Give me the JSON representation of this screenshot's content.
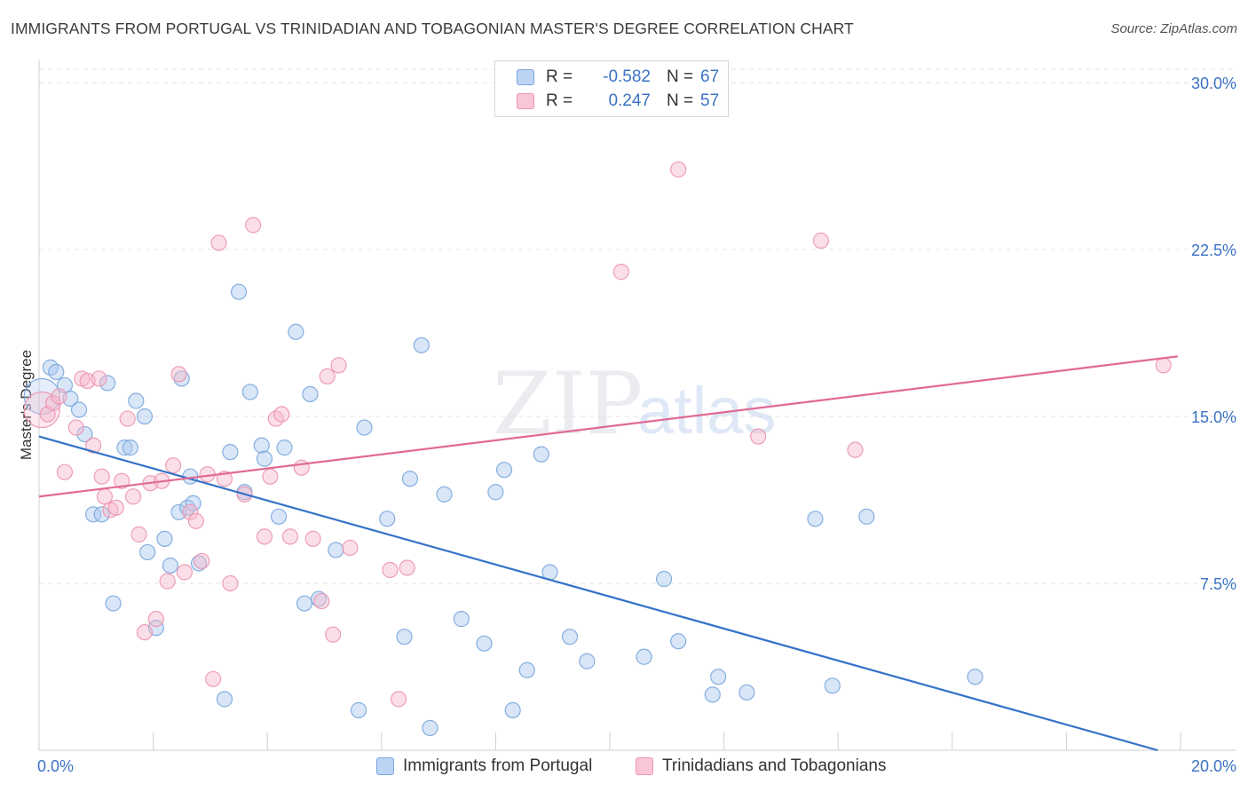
{
  "title": "IMMIGRANTS FROM PORTUGAL VS TRINIDADIAN AND TOBAGONIAN MASTER'S DEGREE CORRELATION CHART",
  "source": "Source: ZipAtlas.com",
  "watermark": {
    "zip": "ZIP",
    "atlas": "atlas"
  },
  "colors": {
    "blue_fill": "#a9c8f0",
    "blue_stroke": "#7aa6dc",
    "blue_line": "#3472c8",
    "pink_fill": "#f7b8cc",
    "pink_stroke": "#ec93b0",
    "pink_line": "#e06a94",
    "tick_label": "#3b72c4",
    "grid": "#e3e3e3"
  },
  "legend": {
    "rows": [
      {
        "series": "blue",
        "r_label": "R =",
        "r_value": "-0.582",
        "n_label": "N =",
        "n_value": "67"
      },
      {
        "series": "pink",
        "r_label": "R =",
        "r_value": "0.247",
        "n_label": "N =",
        "n_value": "57"
      }
    ]
  },
  "chart_data": {
    "type": "scatter",
    "title": "IMMIGRANTS FROM PORTUGAL VS TRINIDADIAN AND TOBAGONIAN MASTER'S DEGREE CORRELATION CHART",
    "xlabel": "",
    "ylabel": "Master's Degree",
    "xlim": [
      0,
      20
    ],
    "ylim": [
      0,
      31
    ],
    "x_ticks": [
      "0.0%",
      "20.0%"
    ],
    "y_ticks": [
      {
        "value": 7.5,
        "label": "7.5%"
      },
      {
        "value": 15.0,
        "label": "15.0%"
      },
      {
        "value": 22.5,
        "label": "22.5%"
      },
      {
        "value": 30.0,
        "label": "30.0%"
      }
    ],
    "grid": "horizontal dashed",
    "legend_position": "top-center and bottom",
    "series": [
      {
        "name": "Immigrants from Portugal",
        "color": "blue",
        "trend": {
          "x": [
            0,
            19.6
          ],
          "y": [
            14.1,
            0.0
          ]
        },
        "points": [
          {
            "x": 0.05,
            "y": 15.9,
            "big": true
          },
          {
            "x": 0.2,
            "y": 17.2
          },
          {
            "x": 0.3,
            "y": 17.0
          },
          {
            "x": 0.45,
            "y": 16.4
          },
          {
            "x": 0.55,
            "y": 15.8
          },
          {
            "x": 0.7,
            "y": 15.3
          },
          {
            "x": 0.8,
            "y": 14.2
          },
          {
            "x": 1.2,
            "y": 16.5
          },
          {
            "x": 1.5,
            "y": 13.6
          },
          {
            "x": 1.6,
            "y": 13.6
          },
          {
            "x": 1.7,
            "y": 15.7
          },
          {
            "x": 1.85,
            "y": 15.0
          },
          {
            "x": 0.95,
            "y": 10.6
          },
          {
            "x": 1.1,
            "y": 10.6
          },
          {
            "x": 1.3,
            "y": 6.6
          },
          {
            "x": 1.9,
            "y": 8.9
          },
          {
            "x": 2.2,
            "y": 9.5
          },
          {
            "x": 2.3,
            "y": 8.3
          },
          {
            "x": 2.45,
            "y": 10.7
          },
          {
            "x": 2.6,
            "y": 10.9
          },
          {
            "x": 2.7,
            "y": 11.1
          },
          {
            "x": 2.8,
            "y": 8.4
          },
          {
            "x": 2.65,
            "y": 12.3
          },
          {
            "x": 2.5,
            "y": 16.7
          },
          {
            "x": 3.35,
            "y": 13.4
          },
          {
            "x": 3.5,
            "y": 20.6
          },
          {
            "x": 3.6,
            "y": 11.6
          },
          {
            "x": 3.7,
            "y": 16.1
          },
          {
            "x": 3.9,
            "y": 13.7
          },
          {
            "x": 3.95,
            "y": 13.1
          },
          {
            "x": 4.2,
            "y": 10.5
          },
          {
            "x": 4.3,
            "y": 13.6
          },
          {
            "x": 4.5,
            "y": 18.8
          },
          {
            "x": 4.65,
            "y": 6.6
          },
          {
            "x": 4.75,
            "y": 16.0
          },
          {
            "x": 4.9,
            "y": 6.8
          },
          {
            "x": 2.05,
            "y": 5.5
          },
          {
            "x": 3.25,
            "y": 2.3
          },
          {
            "x": 5.2,
            "y": 9.0
          },
          {
            "x": 5.6,
            "y": 1.8
          },
          {
            "x": 5.7,
            "y": 14.5
          },
          {
            "x": 6.1,
            "y": 10.4
          },
          {
            "x": 6.4,
            "y": 5.1
          },
          {
            "x": 6.5,
            "y": 12.2
          },
          {
            "x": 6.7,
            "y": 18.2
          },
          {
            "x": 6.85,
            "y": 1.0
          },
          {
            "x": 7.1,
            "y": 11.5
          },
          {
            "x": 7.4,
            "y": 5.9
          },
          {
            "x": 7.8,
            "y": 4.8
          },
          {
            "x": 8.0,
            "y": 11.6
          },
          {
            "x": 8.15,
            "y": 12.6
          },
          {
            "x": 8.3,
            "y": 1.8
          },
          {
            "x": 8.55,
            "y": 3.6
          },
          {
            "x": 8.8,
            "y": 13.3
          },
          {
            "x": 8.95,
            "y": 8.0
          },
          {
            "x": 9.3,
            "y": 5.1
          },
          {
            "x": 9.6,
            "y": 4.0
          },
          {
            "x": 10.6,
            "y": 4.2
          },
          {
            "x": 10.95,
            "y": 7.7
          },
          {
            "x": 11.2,
            "y": 4.9
          },
          {
            "x": 11.8,
            "y": 2.5
          },
          {
            "x": 11.9,
            "y": 3.3
          },
          {
            "x": 12.4,
            "y": 2.6
          },
          {
            "x": 13.6,
            "y": 10.4
          },
          {
            "x": 13.9,
            "y": 2.9
          },
          {
            "x": 14.5,
            "y": 10.5
          },
          {
            "x": 16.4,
            "y": 3.3
          }
        ]
      },
      {
        "name": "Trinidadians and Tobagonians",
        "color": "pink",
        "trend": {
          "x": [
            0,
            19.95
          ],
          "y": [
            11.4,
            17.7
          ]
        },
        "points": [
          {
            "x": 0.05,
            "y": 15.3,
            "big": true
          },
          {
            "x": 0.15,
            "y": 15.1
          },
          {
            "x": 0.25,
            "y": 15.6
          },
          {
            "x": 0.35,
            "y": 15.9
          },
          {
            "x": 0.45,
            "y": 12.5
          },
          {
            "x": 0.65,
            "y": 14.5
          },
          {
            "x": 0.75,
            "y": 16.7
          },
          {
            "x": 0.85,
            "y": 16.6
          },
          {
            "x": 0.95,
            "y": 13.7
          },
          {
            "x": 1.05,
            "y": 16.7
          },
          {
            "x": 1.1,
            "y": 12.3
          },
          {
            "x": 1.15,
            "y": 11.4
          },
          {
            "x": 1.25,
            "y": 10.8
          },
          {
            "x": 1.35,
            "y": 10.9
          },
          {
            "x": 1.45,
            "y": 12.1
          },
          {
            "x": 1.55,
            "y": 14.9
          },
          {
            "x": 1.65,
            "y": 11.4
          },
          {
            "x": 1.75,
            "y": 9.7
          },
          {
            "x": 1.95,
            "y": 12.0
          },
          {
            "x": 2.05,
            "y": 5.9
          },
          {
            "x": 1.85,
            "y": 5.3
          },
          {
            "x": 2.15,
            "y": 12.1
          },
          {
            "x": 2.25,
            "y": 7.6
          },
          {
            "x": 2.35,
            "y": 12.8
          },
          {
            "x": 2.45,
            "y": 16.9
          },
          {
            "x": 2.55,
            "y": 8.0
          },
          {
            "x": 2.65,
            "y": 10.7
          },
          {
            "x": 2.75,
            "y": 10.3
          },
          {
            "x": 2.85,
            "y": 8.5
          },
          {
            "x": 2.95,
            "y": 12.4
          },
          {
            "x": 3.05,
            "y": 3.2
          },
          {
            "x": 3.15,
            "y": 22.8
          },
          {
            "x": 3.25,
            "y": 12.2
          },
          {
            "x": 3.35,
            "y": 7.5
          },
          {
            "x": 3.6,
            "y": 11.5
          },
          {
            "x": 3.75,
            "y": 23.6
          },
          {
            "x": 3.95,
            "y": 9.6
          },
          {
            "x": 4.05,
            "y": 12.3
          },
          {
            "x": 4.15,
            "y": 14.9
          },
          {
            "x": 4.25,
            "y": 15.1
          },
          {
            "x": 4.4,
            "y": 9.6
          },
          {
            "x": 4.6,
            "y": 12.7
          },
          {
            "x": 4.8,
            "y": 9.5
          },
          {
            "x": 4.95,
            "y": 6.7
          },
          {
            "x": 5.05,
            "y": 16.8
          },
          {
            "x": 5.15,
            "y": 5.2
          },
          {
            "x": 5.25,
            "y": 17.3
          },
          {
            "x": 5.45,
            "y": 9.1
          },
          {
            "x": 6.15,
            "y": 8.1
          },
          {
            "x": 6.3,
            "y": 2.3
          },
          {
            "x": 6.45,
            "y": 8.2
          },
          {
            "x": 10.2,
            "y": 21.5
          },
          {
            "x": 11.2,
            "y": 26.1
          },
          {
            "x": 12.6,
            "y": 14.1
          },
          {
            "x": 13.7,
            "y": 22.9
          },
          {
            "x": 14.3,
            "y": 13.5
          },
          {
            "x": 19.7,
            "y": 17.3
          }
        ]
      }
    ]
  },
  "bottom_legend": [
    {
      "series": "blue",
      "label": "Immigrants from Portugal"
    },
    {
      "series": "pink",
      "label": "Trinidadians and Tobagonians"
    }
  ]
}
